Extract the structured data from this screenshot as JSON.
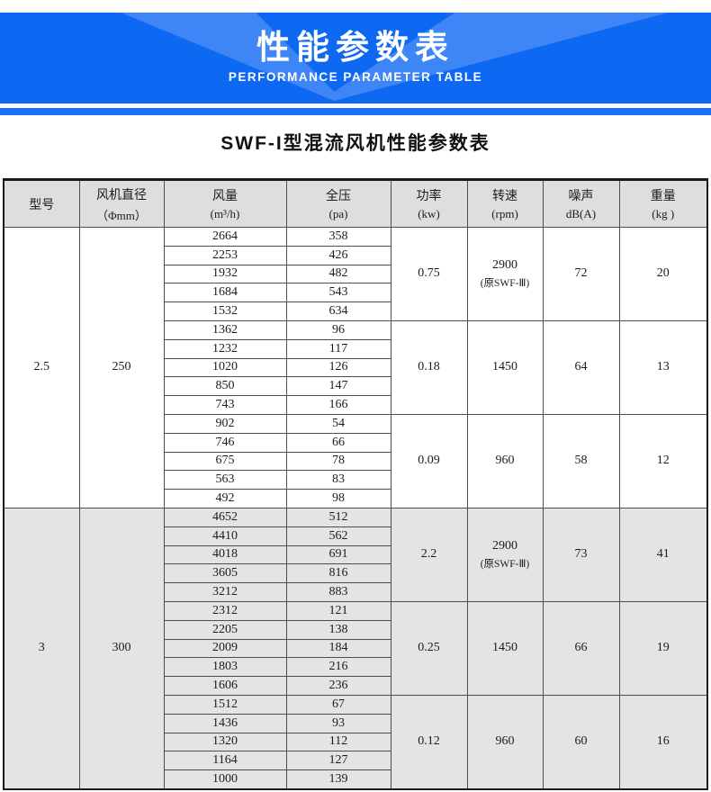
{
  "banner": {
    "title": "性能参数表",
    "subtitle": "PERFORMANCE PARAMETER TABLE"
  },
  "section": {
    "title": "SWF-I型混流风机性能参数表"
  },
  "colors": {
    "banner_base": "#0d69f2",
    "banner_light": "#3e86f6",
    "divider_stripe": "#1a70f4",
    "header_bg": "#dedede",
    "shaded_block_bg": "#e4e4e4",
    "border": "#1a1a1a"
  },
  "table": {
    "headers": [
      {
        "line1": "型号",
        "line2": ""
      },
      {
        "line1": "风机直径",
        "line2": "（Φmm）"
      },
      {
        "line1": "风量",
        "line2": "(m³/h)"
      },
      {
        "line1": "全压",
        "line2": "(pa)"
      },
      {
        "line1": "功率",
        "line2": "(kw)"
      },
      {
        "line1": "转速",
        "line2": "(rpm)"
      },
      {
        "line1": "噪声",
        "line2": "dB(A)"
      },
      {
        "line1": "重量",
        "line2": "(kg )"
      }
    ],
    "blocks": [
      {
        "model": "2.5",
        "diameter": "250",
        "shaded": false,
        "groups": [
          {
            "rows": [
              [
                "2664",
                "358"
              ],
              [
                "2253",
                "426"
              ],
              [
                "1932",
                "482"
              ],
              [
                "1684",
                "543"
              ],
              [
                "1532",
                "634"
              ]
            ],
            "power": "0.75",
            "speed": "2900",
            "speed_note": "(原SWF-Ⅲ)",
            "noise": "72",
            "weight": "20"
          },
          {
            "rows": [
              [
                "1362",
                "96"
              ],
              [
                "1232",
                "117"
              ],
              [
                "1020",
                "126"
              ],
              [
                "850",
                "147"
              ],
              [
                "743",
                "166"
              ]
            ],
            "power": "0.18",
            "speed": "1450",
            "speed_note": "",
            "noise": "64",
            "weight": "13"
          },
          {
            "rows": [
              [
                "902",
                "54"
              ],
              [
                "746",
                "66"
              ],
              [
                "675",
                "78"
              ],
              [
                "563",
                "83"
              ],
              [
                "492",
                "98"
              ]
            ],
            "power": "0.09",
            "speed": "960",
            "speed_note": "",
            "noise": "58",
            "weight": "12"
          }
        ]
      },
      {
        "model": "3",
        "diameter": "300",
        "shaded": true,
        "groups": [
          {
            "rows": [
              [
                "4652",
                "512"
              ],
              [
                "4410",
                "562"
              ],
              [
                "4018",
                "691"
              ],
              [
                "3605",
                "816"
              ],
              [
                "3212",
                "883"
              ]
            ],
            "power": "2.2",
            "speed": "2900",
            "speed_note": "(原SWF-Ⅲ)",
            "noise": "73",
            "weight": "41"
          },
          {
            "rows": [
              [
                "2312",
                "121"
              ],
              [
                "2205",
                "138"
              ],
              [
                "2009",
                "184"
              ],
              [
                "1803",
                "216"
              ],
              [
                "1606",
                "236"
              ]
            ],
            "power": "0.25",
            "speed": "1450",
            "speed_note": "",
            "noise": "66",
            "weight": "19"
          },
          {
            "rows": [
              [
                "1512",
                "67"
              ],
              [
                "1436",
                "93"
              ],
              [
                "1320",
                "112"
              ],
              [
                "1164",
                "127"
              ],
              [
                "1000",
                "139"
              ]
            ],
            "power": "0.12",
            "speed": "960",
            "speed_note": "",
            "noise": "60",
            "weight": "16"
          }
        ]
      }
    ]
  }
}
